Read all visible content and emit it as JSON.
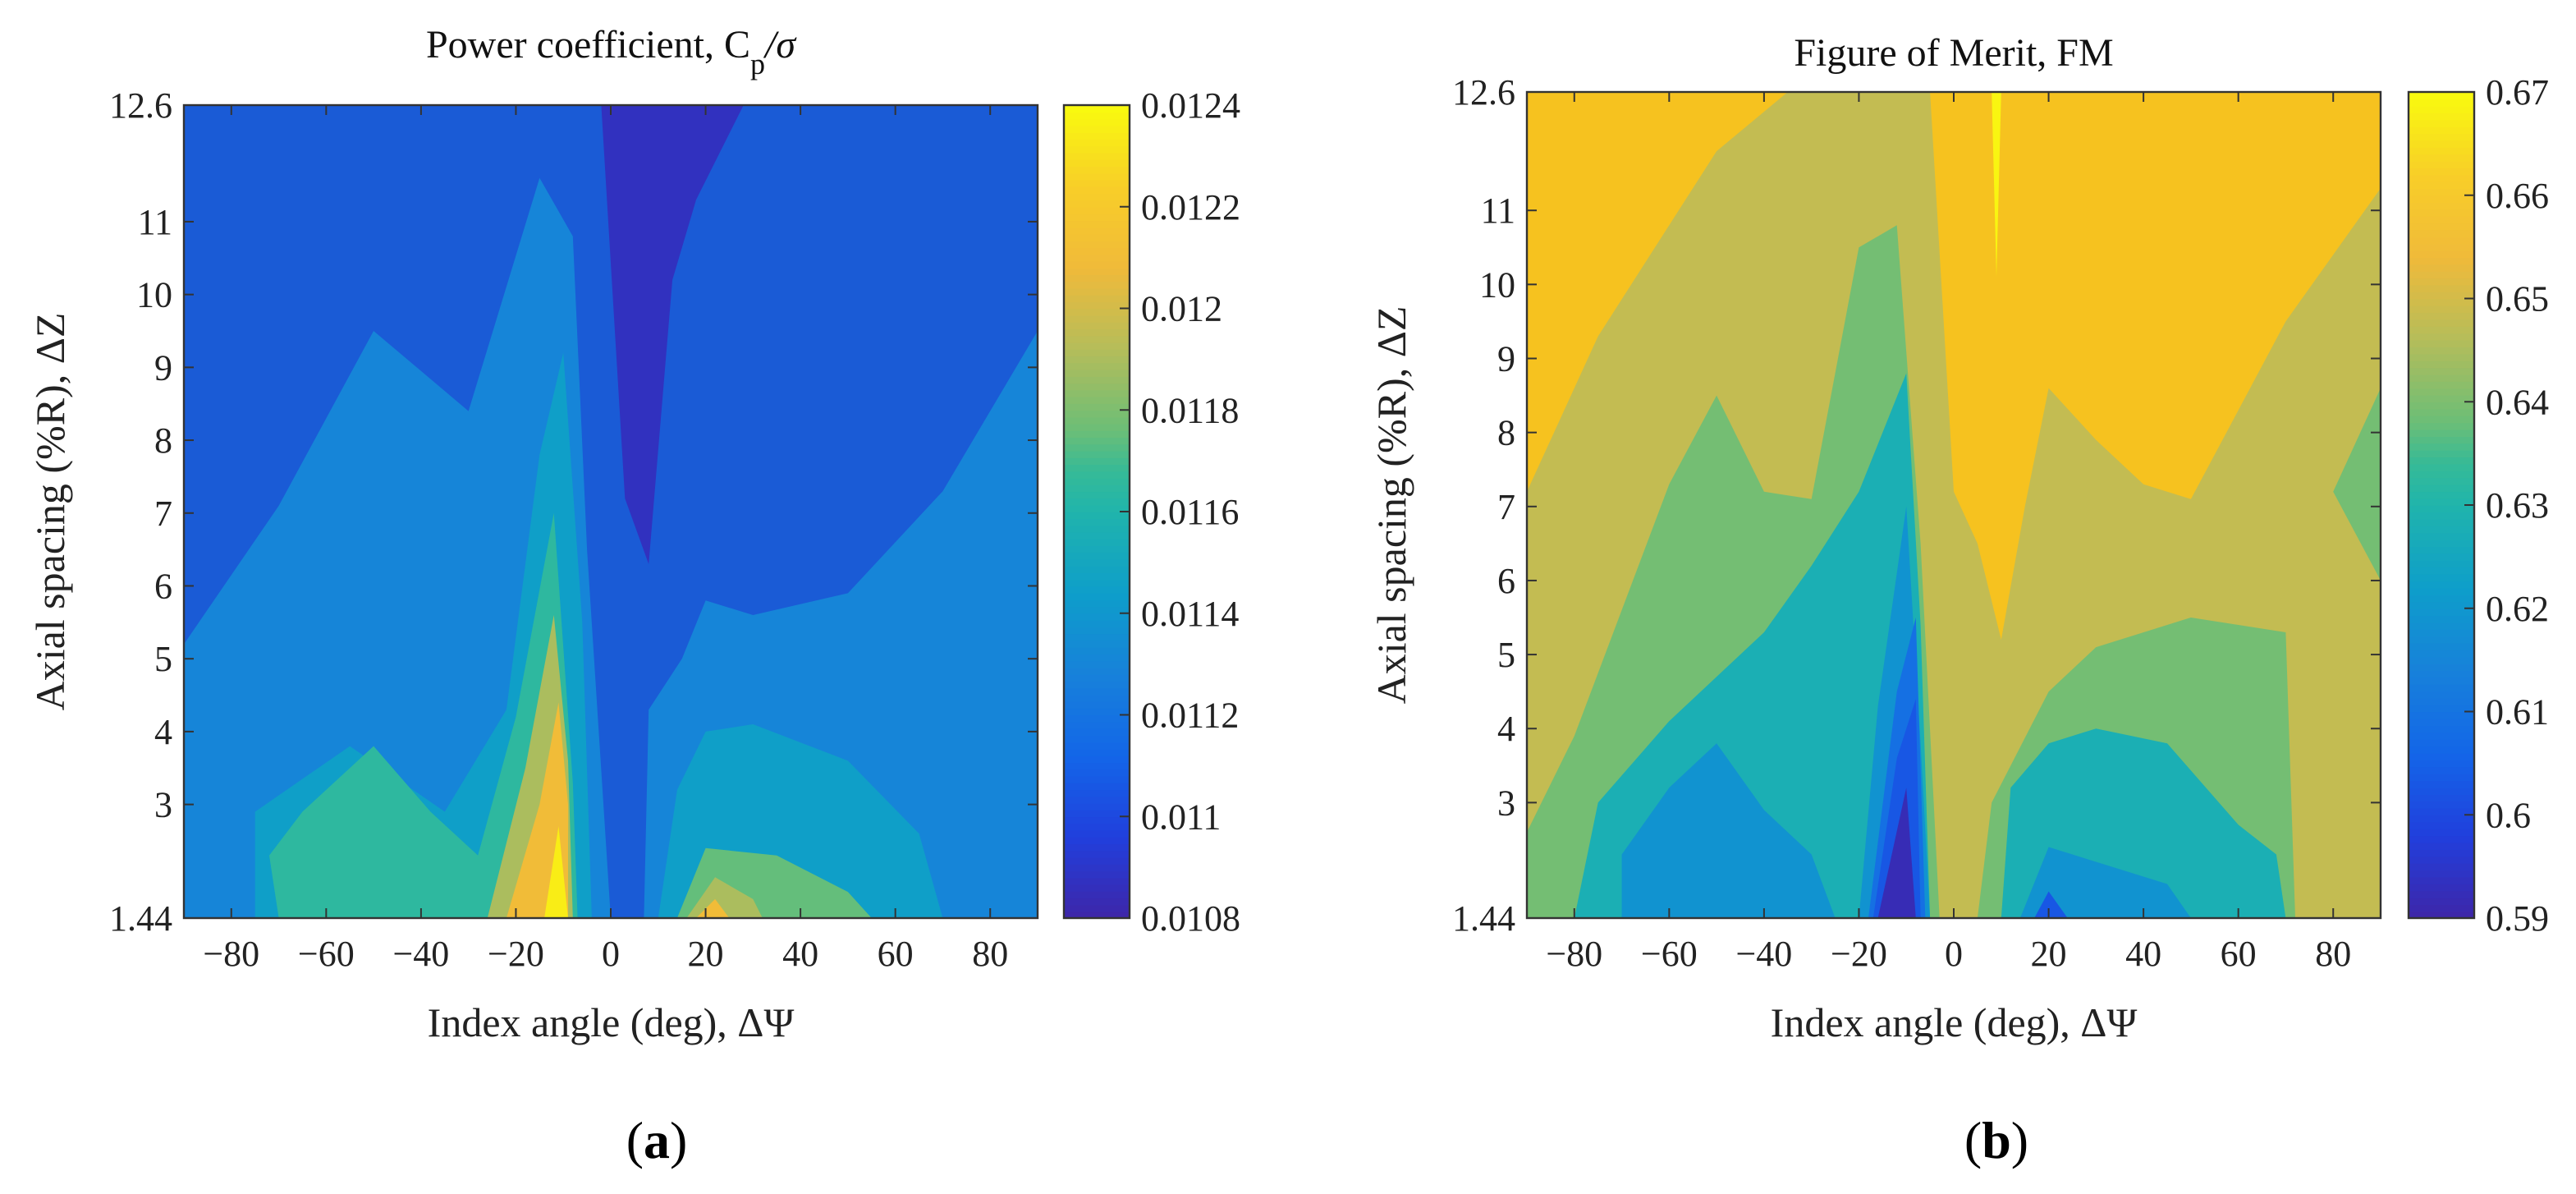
{
  "chart_data": [
    {
      "type": "heatmap",
      "panel": "a",
      "caption_paren_open": "(",
      "caption_letter": "a",
      "caption_paren_close": ")",
      "title": "Power coefficient, C",
      "title_subscript": "p",
      "title_suffix": "/σ",
      "xlabel": "Index angle (deg), ΔΨ",
      "ylabel": "Axial spacing (%R), ΔZ",
      "xlim": [
        -90,
        90
      ],
      "ylim": [
        1.44,
        12.6
      ],
      "xticks": [
        -80,
        -60,
        -40,
        -20,
        0,
        20,
        40,
        60,
        80
      ],
      "xtick_labels": [
        "−80",
        "−60",
        "−40",
        "−20",
        "0",
        "20",
        "40",
        "60",
        "80"
      ],
      "yticks": [
        1.44,
        3,
        4,
        5,
        6,
        7,
        8,
        9,
        10,
        11,
        12.6
      ],
      "ytick_labels": [
        "1.44",
        "3",
        "4",
        "5",
        "6",
        "7",
        "8",
        "9",
        "10",
        "11",
        "12.6"
      ],
      "colorbar": {
        "range": [
          0.0108,
          0.0124
        ],
        "ticks": [
          0.0108,
          0.011,
          0.0112,
          0.0114,
          0.0116,
          0.0118,
          0.012,
          0.0122,
          0.0124
        ],
        "tick_labels": [
          "0.0108",
          "0.011",
          "0.0112",
          "0.0114",
          "0.0116",
          "0.0118",
          "0.012",
          "0.0122",
          "0.0124"
        ]
      },
      "background_value": 0.01113,
      "regions": [
        {
          "level": 0.0113,
          "points": [
            [
              -90,
              1.44
            ],
            [
              -90,
              5.2
            ],
            [
              -70,
              7.1
            ],
            [
              -50,
              9.5
            ],
            [
              -30,
              8.4
            ],
            [
              -15,
              11.6
            ],
            [
              -8,
              10.8
            ],
            [
              -5,
              6.5
            ],
            [
              0,
              1.44
            ]
          ]
        },
        {
          "level": 0.0113,
          "points": [
            [
              7,
              1.44
            ],
            [
              8,
              4.3
            ],
            [
              15,
              5
            ],
            [
              20,
              5.8
            ],
            [
              30,
              5.6
            ],
            [
              50,
              5.9
            ],
            [
              70,
              7.3
            ],
            [
              90,
              9.5
            ],
            [
              90,
              1.44
            ]
          ]
        },
        {
          "level": 0.01145,
          "points": [
            [
              -75,
              1.44
            ],
            [
              -75,
              2.9
            ],
            [
              -55,
              3.8
            ],
            [
              -35,
              2.9
            ],
            [
              -22,
              4.3
            ],
            [
              -15,
              7.8
            ],
            [
              -10,
              9.2
            ],
            [
              -6,
              5.5
            ],
            [
              -4,
              1.44
            ]
          ]
        },
        {
          "level": 0.01145,
          "points": [
            [
              10,
              1.44
            ],
            [
              14,
              3.2
            ],
            [
              20,
              4
            ],
            [
              30,
              4.1
            ],
            [
              50,
              3.6
            ],
            [
              65,
              2.6
            ],
            [
              70,
              1.44
            ]
          ]
        },
        {
          "level": 0.01165,
          "points": [
            [
              -70,
              1.44
            ],
            [
              -72,
              2.3
            ],
            [
              -65,
              2.9
            ],
            [
              -50,
              3.8
            ],
            [
              -38,
              2.9
            ],
            [
              -28,
              2.3
            ],
            [
              -20,
              4.2
            ],
            [
              -12,
              7
            ],
            [
              -8,
              3.3
            ],
            [
              -7,
              1.44
            ]
          ]
        },
        {
          "level": 0.01175,
          "points": [
            [
              14,
              1.44
            ],
            [
              20,
              2.4
            ],
            [
              35,
              2.3
            ],
            [
              50,
              1.8
            ],
            [
              55,
              1.44
            ]
          ]
        },
        {
          "level": 0.0119,
          "points": [
            [
              -26,
              1.44
            ],
            [
              -18,
              3.5
            ],
            [
              -12,
              5.6
            ],
            [
              -9,
              3.6
            ],
            [
              -8,
              1.44
            ]
          ]
        },
        {
          "level": 0.0119,
          "points": [
            [
              16,
              1.44
            ],
            [
              22,
              2
            ],
            [
              30,
              1.7
            ],
            [
              32,
              1.44
            ]
          ]
        },
        {
          "level": 0.0121,
          "points": [
            [
              -22,
              1.44
            ],
            [
              -15,
              3
            ],
            [
              -11,
              4.4
            ],
            [
              -9,
              3
            ],
            [
              -9,
              1.44
            ]
          ]
        },
        {
          "level": 0.0121,
          "points": [
            [
              18,
              1.44
            ],
            [
              22,
              1.7
            ],
            [
              25,
              1.44
            ]
          ]
        },
        {
          "level": 0.01235,
          "points": [
            [
              -14,
              1.44
            ],
            [
              -11,
              2.7
            ],
            [
              -9,
              1.44
            ]
          ]
        },
        {
          "level": 0.01087,
          "points": [
            [
              -2,
              12.6
            ],
            [
              3,
              7.2
            ],
            [
              8,
              6.3
            ],
            [
              13,
              10.2
            ],
            [
              18,
              11.3
            ],
            [
              28,
              12.6
            ]
          ]
        }
      ]
    },
    {
      "type": "heatmap",
      "panel": "b",
      "caption_paren_open": "(",
      "caption_letter": "b",
      "caption_paren_close": ")",
      "title": "Figure of Merit, FM",
      "xlabel": "Index angle (deg), ΔΨ",
      "ylabel": "Axial spacing (%R), ΔZ",
      "xlim": [
        -90,
        90
      ],
      "ylim": [
        1.44,
        12.6
      ],
      "xticks": [
        -80,
        -60,
        -40,
        -20,
        0,
        20,
        40,
        60,
        80
      ],
      "xtick_labels": [
        "−80",
        "−60",
        "−40",
        "−20",
        "0",
        "20",
        "40",
        "60",
        "80"
      ],
      "yticks": [
        1.44,
        3,
        4,
        5,
        6,
        7,
        8,
        9,
        10,
        11,
        12.6
      ],
      "ytick_labels": [
        "1.44",
        "3",
        "4",
        "5",
        "6",
        "7",
        "8",
        "9",
        "10",
        "11",
        "12.6"
      ],
      "colorbar": {
        "range": [
          0.59,
          0.67
        ],
        "ticks": [
          0.59,
          0.6,
          0.61,
          0.62,
          0.63,
          0.64,
          0.65,
          0.66,
          0.67
        ],
        "tick_labels": [
          "0.59",
          "0.6",
          "0.61",
          "0.62",
          "0.63",
          "0.64",
          "0.65",
          "0.66",
          "0.67"
        ]
      },
      "background_value": 0.657,
      "regions": [
        {
          "level": 0.648,
          "points": [
            [
              -90,
              1.44
            ],
            [
              -90,
              7.2
            ],
            [
              -75,
              9.3
            ],
            [
              -50,
              11.8
            ],
            [
              -35,
              12.6
            ],
            [
              -5,
              12.6
            ],
            [
              0,
              7.2
            ],
            [
              5,
              6.5
            ],
            [
              10,
              5.2
            ],
            [
              15,
              7
            ],
            [
              20,
              8.6
            ],
            [
              30,
              7.9
            ],
            [
              40,
              7.3
            ],
            [
              50,
              7.1
            ],
            [
              70,
              9.5
            ],
            [
              90,
              11.3
            ],
            [
              90,
              1.44
            ]
          ]
        },
        {
          "level": 0.639,
          "points": [
            [
              -90,
              1.44
            ],
            [
              -90,
              2.6
            ],
            [
              -80,
              3.9
            ],
            [
              -60,
              7.3
            ],
            [
              -50,
              8.5
            ],
            [
              -40,
              7.2
            ],
            [
              -30,
              7.1
            ],
            [
              -20,
              10.5
            ],
            [
              -12,
              10.8
            ],
            [
              -7,
              6.5
            ],
            [
              -3,
              1.44
            ]
          ]
        },
        {
          "level": 0.639,
          "points": [
            [
              5,
              1.44
            ],
            [
              8,
              3
            ],
            [
              20,
              4.5
            ],
            [
              30,
              5.1
            ],
            [
              50,
              5.5
            ],
            [
              70,
              5.3
            ],
            [
              72,
              1.44
            ]
          ]
        },
        {
          "level": 0.639,
          "points": [
            [
              90,
              6
            ],
            [
              80,
              7.2
            ],
            [
              90,
              8.6
            ]
          ]
        },
        {
          "level": 0.628,
          "points": [
            [
              -80,
              1.44
            ],
            [
              -75,
              3
            ],
            [
              -60,
              4.1
            ],
            [
              -50,
              4.7
            ],
            [
              -40,
              5.3
            ],
            [
              -30,
              6.2
            ],
            [
              -20,
              7.2
            ],
            [
              -10,
              8.8
            ],
            [
              -7,
              5.4
            ],
            [
              -5,
              1.44
            ]
          ]
        },
        {
          "level": 0.628,
          "points": [
            [
              10,
              1.44
            ],
            [
              12,
              3.2
            ],
            [
              20,
              3.8
            ],
            [
              30,
              4
            ],
            [
              45,
              3.8
            ],
            [
              60,
              2.7
            ],
            [
              68,
              2.3
            ],
            [
              70,
              1.44
            ]
          ]
        },
        {
          "level": 0.619,
          "points": [
            [
              -70,
              1.44
            ],
            [
              -70,
              2.3
            ],
            [
              -60,
              3.2
            ],
            [
              -50,
              3.8
            ],
            [
              -40,
              2.9
            ],
            [
              -30,
              2.3
            ],
            [
              -25,
              1.44
            ]
          ]
        },
        {
          "level": 0.619,
          "points": [
            [
              -20,
              1.44
            ],
            [
              -16,
              4.3
            ],
            [
              -10,
              7
            ],
            [
              -7,
              3.8
            ],
            [
              -5,
              1.44
            ]
          ]
        },
        {
          "level": 0.619,
          "points": [
            [
              14,
              1.44
            ],
            [
              20,
              2.4
            ],
            [
              30,
              2.2
            ],
            [
              45,
              1.9
            ],
            [
              50,
              1.44
            ]
          ]
        },
        {
          "level": 0.609,
          "points": [
            [
              -18,
              1.44
            ],
            [
              -12,
              4.5
            ],
            [
              -8,
              5.5
            ],
            [
              -6,
              1.44
            ]
          ]
        },
        {
          "level": 0.603,
          "points": [
            [
              -17,
              1.44
            ],
            [
              -12,
              3.6
            ],
            [
              -8,
              4.4
            ],
            [
              -7,
              1.44
            ]
          ]
        },
        {
          "level": 0.592,
          "points": [
            [
              -16,
              1.44
            ],
            [
              -10,
              3.2
            ],
            [
              -8,
              1.44
            ]
          ]
        },
        {
          "level": 0.603,
          "points": [
            [
              17,
              1.44
            ],
            [
              20,
              1.8
            ],
            [
              24,
              1.44
            ]
          ]
        },
        {
          "level": 0.669,
          "points": [
            [
              8,
              12.6
            ],
            [
              9,
              10.1
            ],
            [
              10,
              12.6
            ]
          ]
        }
      ]
    }
  ]
}
